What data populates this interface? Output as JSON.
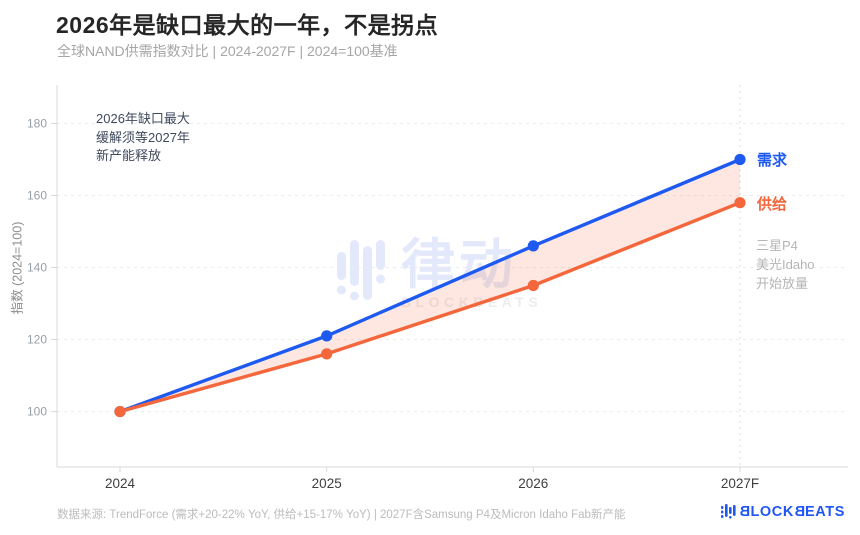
{
  "header": {
    "title": "2026年是缺口最大的一年，不是拐点",
    "subtitle": "全球NAND供需指数对比 | 2024-2027F | 2024=100基准"
  },
  "colors": {
    "demand": "#1f5af0",
    "supply": "#f4663b",
    "area_fill": "rgba(245,106,62,0.16)",
    "grid": "#ececec",
    "axis": "#d9d9d9",
    "vline": "#dcdcdc",
    "tick_text": "#9aa0a8",
    "xlabel_text": "#3f3f3f",
    "logo_blue": "#2156f3",
    "watermark_blue": "#e3e9fb"
  },
  "chart_data": {
    "type": "line",
    "title": "2026年是缺口最大的一年，不是拐点",
    "subtitle": "全球NAND供需指数对比 | 2024-2027F | 2024=100基准",
    "categories": [
      "2024",
      "2025",
      "2026",
      "2027F"
    ],
    "series": [
      {
        "name": "需求",
        "values": [
          100,
          121,
          146,
          170
        ],
        "color_key": "demand"
      },
      {
        "name": "供给",
        "values": [
          100,
          116,
          135,
          158
        ],
        "color_key": "supply"
      }
    ],
    "xlabel": "",
    "ylabel": "指数 (2024=100)",
    "yticks": [
      100,
      120,
      140,
      160,
      180
    ],
    "ylim": [
      84.6,
      190.7
    ],
    "grid": "horizontal-dashed",
    "area_between_series": true,
    "vline_at_category": "2027F",
    "legend_position": "right-of-line-end"
  },
  "annotations": {
    "gap_note": {
      "lines": [
        "2026年缺口最大",
        "缓解须等2027年",
        "新产能释放"
      ]
    },
    "capacity_note": {
      "lines": [
        "三星P4",
        "美光Idaho",
        "开始放量"
      ]
    }
  },
  "watermark": {
    "brand_cn": "律动",
    "brand_en": "BLOCKBEATS"
  },
  "footer": {
    "source": "数据来源: TrendForce (需求+20-22% YoY, 供给+15-17% YoY) | 2027F含Samsung P4及Micron Idaho Fab新产能"
  },
  "logo": {
    "parts": {
      "b1": "B",
      "lock": "LOCK",
      "b2": "B",
      "eats": "EATS"
    }
  }
}
